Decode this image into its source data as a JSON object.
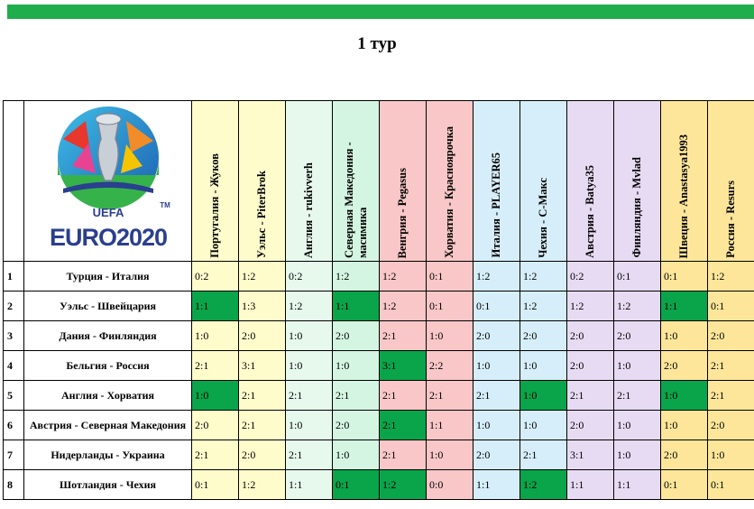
{
  "title": "1 тур",
  "logo": {
    "brand": "UEFA",
    "name": "EURO2020",
    "tm": "TM"
  },
  "players": [
    {
      "label": "Португалия - Жуков",
      "color": "#fffccc"
    },
    {
      "label": "Уэльс - PiterBrok",
      "color": "#fffccc"
    },
    {
      "label": "Англия - rukivverh",
      "color": "#e6f9ec"
    },
    {
      "label": "Северная Македония - масимика",
      "color": "#d4f5e2"
    },
    {
      "label": "Венгрия - Pegasus",
      "color": "#f9c7c7"
    },
    {
      "label": "Хорватия - Красноярочка",
      "color": "#f9c7c7"
    },
    {
      "label": "Италия - PLAYER65",
      "color": "#d6eef9"
    },
    {
      "label": "Чехия - С-Макс",
      "color": "#d6eef9"
    },
    {
      "label": "Австрия - Batya35",
      "color": "#e7dbf3"
    },
    {
      "label": "Финляндия - Mvlad",
      "color": "#e7dbf3"
    },
    {
      "label": "Швеция - Anastasya1993",
      "color": "#fde69a"
    },
    {
      "label": "Россия - Resurs",
      "color": "#fde69a"
    }
  ],
  "highlight_color": "#0aa44a",
  "rows": [
    {
      "num": "1",
      "match": "Турция - Италия",
      "scores": [
        "0:2",
        "1:2",
        "0:2",
        "1:2",
        "1:2",
        "0:1",
        "1:2",
        "1:2",
        "0:2",
        "0:1",
        "0:1",
        "1:2"
      ],
      "hits": []
    },
    {
      "num": "2",
      "match": "Уэльс - Швейцария",
      "scores": [
        "1:1",
        "1:3",
        "1:2",
        "1:1",
        "1:2",
        "0:1",
        "0:1",
        "1:2",
        "1:2",
        "1:2",
        "1:1",
        "0:1"
      ],
      "hits": [
        0,
        3,
        10
      ]
    },
    {
      "num": "3",
      "match": "Дания - Финляндия",
      "scores": [
        "1:0",
        "2:0",
        "1:0",
        "2:0",
        "2:1",
        "1:0",
        "2:0",
        "2:0",
        "2:0",
        "2:0",
        "1:0",
        "2:0"
      ],
      "hits": []
    },
    {
      "num": "4",
      "match": "Бельгия - Россия",
      "scores": [
        "2:1",
        "3:1",
        "1:0",
        "1:0",
        "3:1",
        "2:2",
        "1:0",
        "1:0",
        "2:0",
        "1:0",
        "2:0",
        "2:1"
      ],
      "hits": [
        4
      ]
    },
    {
      "num": "5",
      "match": "Англия - Хорватия",
      "scores": [
        "1:0",
        "2:1",
        "2:1",
        "2:1",
        "2:1",
        "2:1",
        "2:1",
        "1:0",
        "2:1",
        "2:1",
        "1:0",
        "2:1"
      ],
      "hits": [
        0,
        7,
        10
      ]
    },
    {
      "num": "6",
      "match": "Австрия - Северная Македония",
      "scores": [
        "2:0",
        "2:1",
        "1:0",
        "2:0",
        "2:1",
        "1:1",
        "1:0",
        "1:0",
        "2:0",
        "1:0",
        "1:0",
        "2:0"
      ],
      "hits": [
        4
      ]
    },
    {
      "num": "7",
      "match": "Нидерланды - Украина",
      "scores": [
        "2:1",
        "2:0",
        "2:1",
        "1:0",
        "2:1",
        "1:0",
        "2:0",
        "2:1",
        "3:1",
        "1:0",
        "2:0",
        "1:0"
      ],
      "hits": []
    },
    {
      "num": "8",
      "match": "Шотландия - Чехия",
      "scores": [
        "0:1",
        "1:2",
        "1:1",
        "0:1",
        "1:2",
        "0:0",
        "1:1",
        "1:2",
        "1:1",
        "1:1",
        "0:1",
        "0:1"
      ],
      "hits": [
        3,
        4,
        7
      ]
    }
  ]
}
